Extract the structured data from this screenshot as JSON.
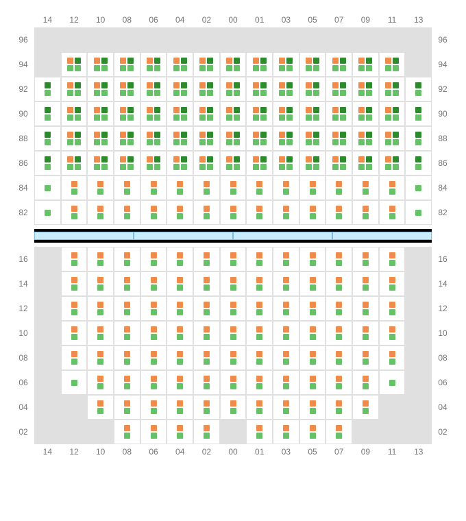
{
  "colors": {
    "orange": "#ef8c4b",
    "dark_green": "#2d8a2d",
    "light_green": "#66c266",
    "gap_gray": "#e0e0e0",
    "border_gray": "#e0e0e0",
    "label_gray": "#777777",
    "divider_fill": "#c9ecff",
    "divider_border": "#7fbce0"
  },
  "column_labels": [
    "14",
    "12",
    "10",
    "08",
    "06",
    "04",
    "02",
    "00",
    "01",
    "03",
    "05",
    "07",
    "09",
    "11",
    "13"
  ],
  "top": {
    "row_labels": [
      "96",
      "94",
      "92",
      "90",
      "88",
      "86",
      "84",
      "82"
    ],
    "rows": [
      [
        "empty",
        "empty",
        "empty",
        "empty",
        "empty",
        "empty",
        "empty",
        "empty",
        "empty",
        "empty",
        "empty",
        "empty",
        "empty",
        "empty",
        "empty"
      ],
      [
        "empty",
        "A",
        "A",
        "A",
        "A",
        "A",
        "A",
        "A",
        "A",
        "A",
        "A",
        "A",
        "A",
        "A",
        "empty"
      ],
      [
        "B",
        "A",
        "A",
        "A",
        "A",
        "A",
        "A",
        "A",
        "A",
        "A",
        "A",
        "A",
        "A",
        "A",
        "B"
      ],
      [
        "B",
        "A",
        "A",
        "A",
        "A",
        "A",
        "A",
        "A",
        "A",
        "A",
        "A",
        "A",
        "A",
        "A",
        "B"
      ],
      [
        "B",
        "A",
        "A",
        "A",
        "A",
        "A",
        "A",
        "A",
        "A",
        "A",
        "A",
        "A",
        "A",
        "A",
        "B"
      ],
      [
        "B",
        "A",
        "A",
        "A",
        "A",
        "A",
        "A",
        "A",
        "A",
        "A",
        "A",
        "A",
        "A",
        "A",
        "B"
      ],
      [
        "E",
        "C",
        "C",
        "C",
        "C",
        "C",
        "C",
        "C",
        "C",
        "C",
        "C",
        "C",
        "C",
        "C",
        "E"
      ],
      [
        "E",
        "C",
        "C",
        "C",
        "C",
        "C",
        "C",
        "C",
        "C",
        "C",
        "C",
        "C",
        "C",
        "C",
        "E"
      ]
    ]
  },
  "divider_segments": 4,
  "bottom": {
    "row_labels": [
      "16",
      "14",
      "12",
      "10",
      "08",
      "06",
      "04",
      "02"
    ],
    "rows": [
      [
        "empty",
        "C",
        "C",
        "C",
        "C",
        "C",
        "C",
        "C",
        "C",
        "C",
        "C",
        "C",
        "C",
        "C",
        "empty"
      ],
      [
        "empty",
        "C",
        "C",
        "C",
        "C",
        "C",
        "C",
        "C",
        "C",
        "C",
        "C",
        "C",
        "C",
        "C",
        "empty"
      ],
      [
        "empty",
        "C",
        "C",
        "C",
        "C",
        "C",
        "C",
        "C",
        "C",
        "C",
        "C",
        "C",
        "C",
        "C",
        "empty"
      ],
      [
        "empty",
        "C",
        "C",
        "C",
        "C",
        "C",
        "C",
        "C",
        "C",
        "C",
        "C",
        "C",
        "C",
        "C",
        "empty"
      ],
      [
        "empty",
        "C",
        "C",
        "C",
        "C",
        "C",
        "C",
        "C",
        "C",
        "C",
        "C",
        "C",
        "C",
        "C",
        "empty"
      ],
      [
        "empty",
        "D",
        "C",
        "C",
        "C",
        "C",
        "C",
        "C",
        "C",
        "C",
        "C",
        "C",
        "C",
        "D",
        "empty"
      ],
      [
        "empty",
        "empty",
        "C",
        "C",
        "C",
        "C",
        "C",
        "C",
        "C",
        "C",
        "C",
        "C",
        "C",
        "empty",
        "empty"
      ],
      [
        "empty",
        "empty",
        "empty",
        "C",
        "C",
        "C",
        "C",
        "empty",
        "C",
        "C",
        "C",
        "C",
        "empty",
        "empty",
        "empty"
      ]
    ]
  },
  "cell_types": {
    "A": {
      "top_row": [
        "orange",
        "dark_green"
      ],
      "bottom_row": [
        "light_green",
        "light_green"
      ]
    },
    "B": {
      "top_row": [
        "dark_green"
      ],
      "bottom_row": [
        "light_green"
      ]
    },
    "C": {
      "top_row": [
        "orange"
      ],
      "bottom_row": [
        "light_green"
      ]
    },
    "D": {
      "top_row": [],
      "bottom_row": [
        "light_green"
      ]
    },
    "E": {
      "top_row": [
        "light_green"
      ],
      "bottom_row": []
    }
  }
}
